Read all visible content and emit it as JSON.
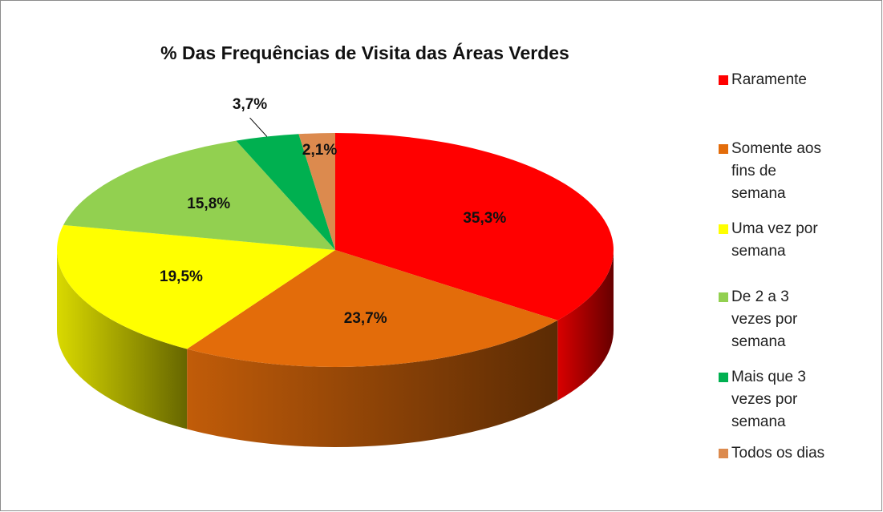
{
  "chart_data": {
    "type": "pie3d",
    "title": "% Das Frequências de Visita das Áreas Verdes",
    "categories": [
      "Raramente",
      "Somente aos fins de semana",
      "Uma vez por semana",
      "De 2 a 3 vezes por semana",
      "Mais que 3 vezes por semana",
      "Todos os dias"
    ],
    "values": [
      35.3,
      23.7,
      19.5,
      15.8,
      3.7,
      2.1
    ],
    "value_labels": [
      "35,3%",
      "23,7%",
      "19,5%",
      "15,8%",
      "3,7%",
      "2,1%"
    ],
    "colors": [
      "#ff0000",
      "#e36c0a",
      "#ffff00",
      "#92d050",
      "#00b050",
      "#dc8a4e"
    ],
    "legend": "right"
  }
}
